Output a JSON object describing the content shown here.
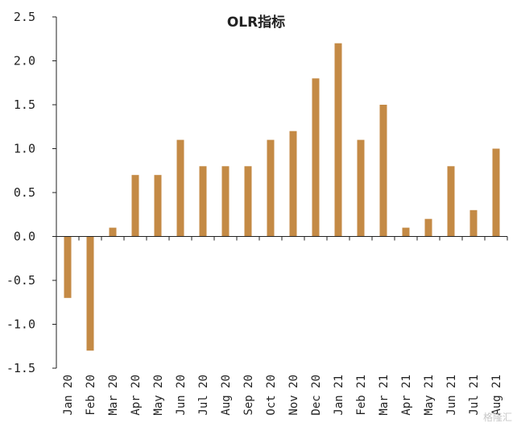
{
  "chart_data": {
    "type": "bar",
    "title": "OLR指标",
    "xlabel": "",
    "ylabel": "",
    "ylim": [
      -1.5,
      2.5
    ],
    "yticks": [
      2.5,
      2.0,
      1.5,
      1.0,
      0.5,
      0.0,
      -0.5,
      -1.0,
      -1.5
    ],
    "ytick_labels": [
      "2.5",
      "2.0",
      "1.5",
      "1.0",
      "0.5",
      "0.0",
      "-0.5",
      "-1.0",
      "-1.5"
    ],
    "grid": false,
    "legend": "none",
    "bar_color": "#C48A45",
    "categories": [
      "Jan 20",
      "Feb 20",
      "Mar 20",
      "Apr 20",
      "May 20",
      "Jun 20",
      "Jul 20",
      "Aug 20",
      "Sep 20",
      "Oct 20",
      "Nov 20",
      "Dec 20",
      "Jan 21",
      "Feb 21",
      "Mar 21",
      "Apr 21",
      "May 21",
      "Jun 21",
      "Jul 21",
      "Aug 21"
    ],
    "values": [
      -0.7,
      -1.3,
      0.1,
      0.7,
      0.7,
      1.1,
      0.8,
      0.8,
      0.8,
      1.1,
      1.2,
      1.8,
      2.2,
      1.1,
      1.5,
      0.1,
      0.2,
      0.8,
      0.3,
      1.0
    ]
  },
  "watermark": "格隆汇"
}
